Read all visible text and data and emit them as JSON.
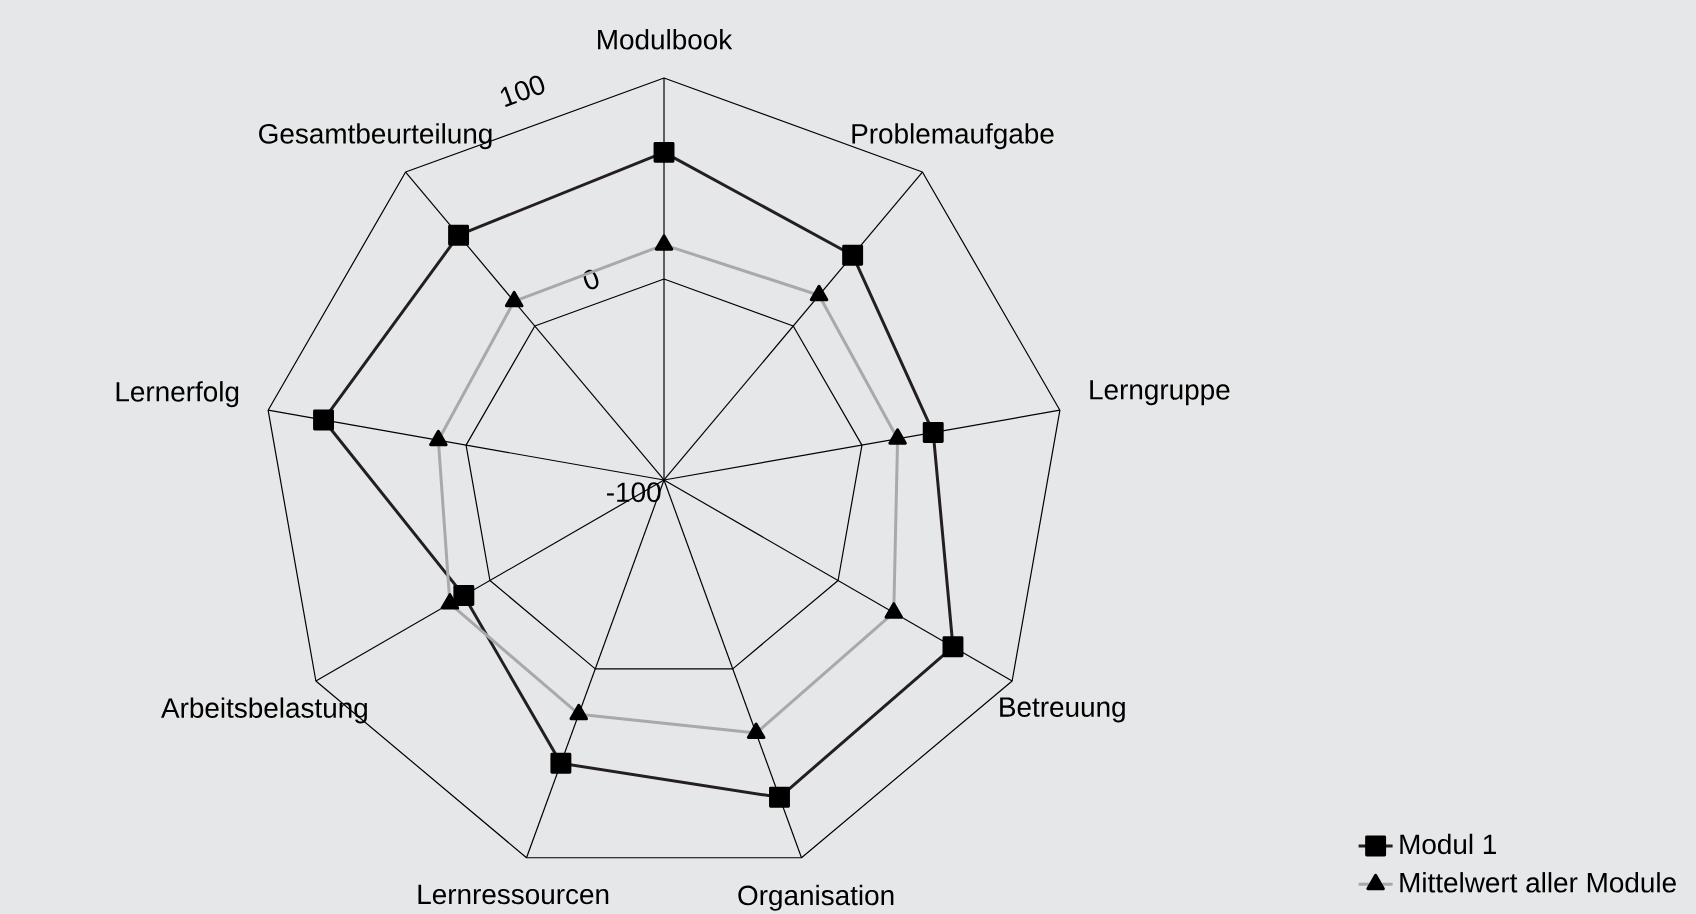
{
  "chart_data": {
    "type": "radar",
    "categories": [
      "Modulbook",
      "Problemaufgabe",
      "Lerngruppe",
      "Betreuung",
      "Organisation",
      "Lernressourcen",
      "Arbeitsbelastung",
      "Lernerfolg",
      "Gesamtbeurteilung"
    ],
    "series": [
      {
        "name": "Modul 1",
        "color": "#231f20",
        "marker": "square",
        "values": [
          63,
          46,
          36,
          66,
          68,
          50,
          15,
          72,
          59
        ]
      },
      {
        "name": "Mittelwert aller Module",
        "color": "#a7a9ac",
        "marker": "triangle",
        "values": [
          17,
          20,
          18,
          32,
          34,
          24,
          23,
          14,
          16
        ]
      }
    ],
    "ylim": [
      -100,
      100
    ],
    "yticks": [
      -100,
      0,
      100
    ],
    "grid": true,
    "legend": "bottom right"
  }
}
